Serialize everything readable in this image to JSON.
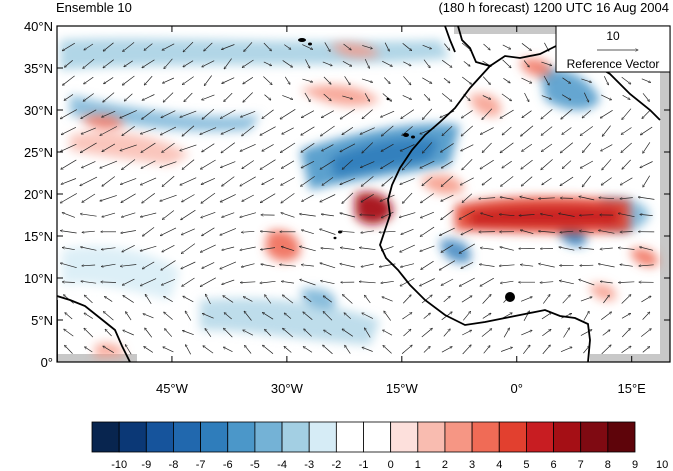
{
  "header": {
    "left_title": "Ensemble 10",
    "right_title": "(180 h forecast) 1200 UTC 16 Aug 2004"
  },
  "map": {
    "projection": "cylindrical equidistant",
    "lon_range": [
      -60,
      20
    ],
    "lat_range": [
      0,
      40
    ],
    "lat_tick_labels": [
      "0°",
      "5°N",
      "10°N",
      "15°N",
      "20°N",
      "25°N",
      "30°N",
      "35°N",
      "40°N"
    ],
    "lon_tick_labels": [
      "45°W",
      "30°W",
      "15°W",
      "0°",
      "15°E"
    ],
    "field": "shaded anomaly with wind vectors",
    "vector_field": "easterly trade winds"
  },
  "reference_vector": {
    "magnitude": "10",
    "label": "Reference Vector"
  },
  "colorbar": {
    "labels": [
      "-10",
      "-9",
      "-8",
      "-7",
      "-6",
      "-5",
      "-4",
      "-3",
      "-2",
      "-1",
      "0",
      "1",
      "2",
      "3",
      "4",
      "5",
      "6",
      "7",
      "8",
      "9",
      "10"
    ],
    "colors": [
      "#08254f",
      "#0b3876",
      "#16549c",
      "#2168ae",
      "#2f7dbb",
      "#4b97c9",
      "#74b2d6",
      "#a3cfe3",
      "#d6ecf6",
      "#ffffff",
      "#ffffff",
      "#fde0dc",
      "#f9bcb0",
      "#f69684",
      "#f06b56",
      "#e2402f",
      "#c81d22",
      "#a50f15",
      "#7f0a12",
      "#5e040a"
    ]
  }
}
